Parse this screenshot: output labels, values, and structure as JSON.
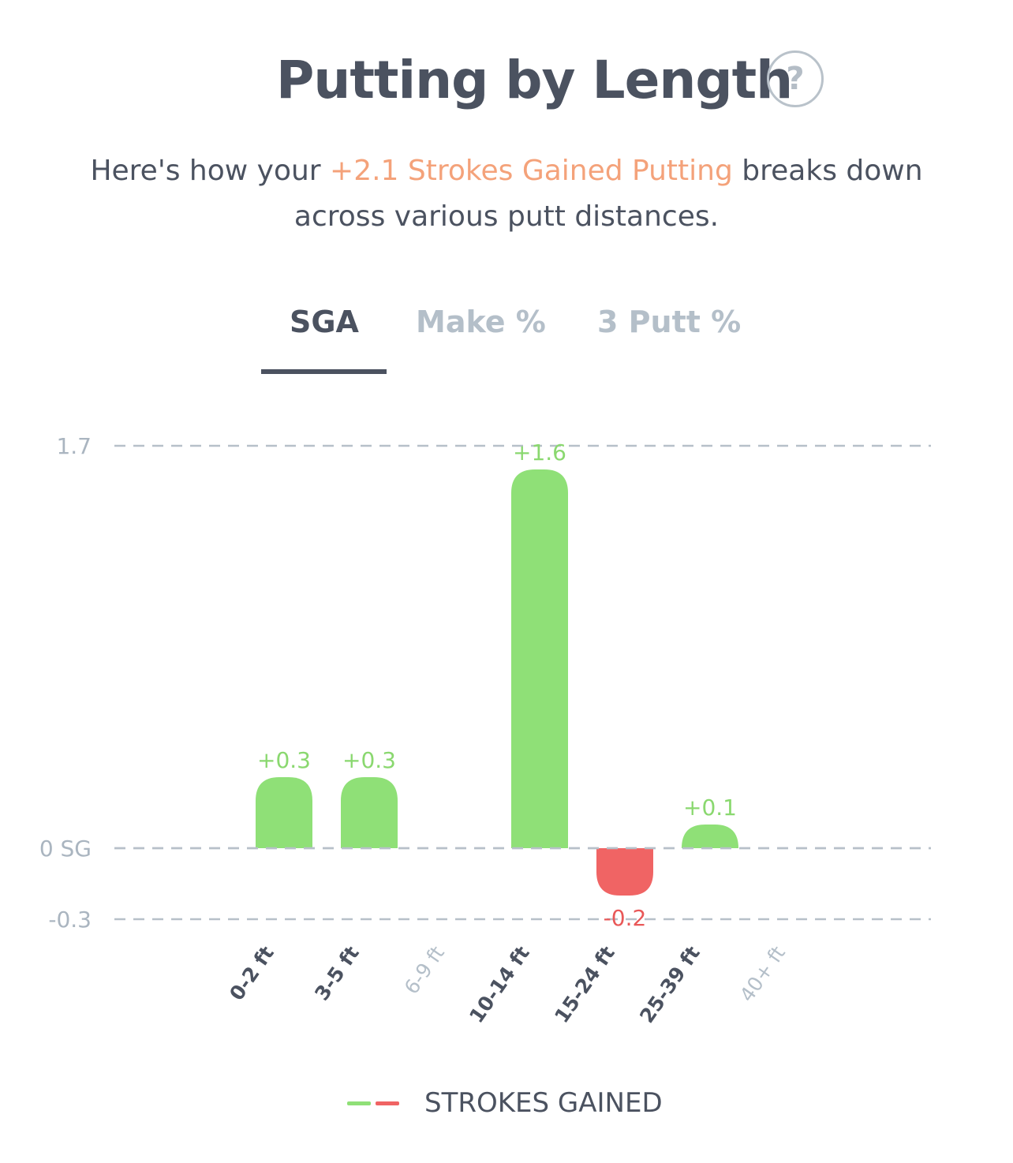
{
  "header": {
    "title": "Putting by Length",
    "help_label": "?",
    "subtitle_prefix": "Here's how your ",
    "subtitle_highlight": "+2.1 Strokes Gained Putting",
    "subtitle_suffix": " breaks down across various putt distances."
  },
  "tabs": [
    {
      "label": "SGA",
      "active": true
    },
    {
      "label": "Make %",
      "active": false
    },
    {
      "label": "3 Putt %",
      "active": false
    }
  ],
  "colors": {
    "positive": "#8fe077",
    "negative": "#f06464",
    "positive_label": "#8ad86f",
    "negative_label": "#e95858",
    "grid": "#b7c0c9",
    "axis_text": "#aab5c0",
    "category_active": "#4b5260",
    "category_inactive": "#b4bfc9",
    "highlight": "#f4a27a"
  },
  "chart_data": {
    "type": "bar",
    "categories": [
      "0-2 ft",
      "3-5 ft",
      "6-9 ft",
      "10-14 ft",
      "15-24 ft",
      "25-39 ft",
      "40+ ft"
    ],
    "category_active": [
      true,
      true,
      false,
      true,
      true,
      true,
      false
    ],
    "series": [
      {
        "name": "STROKES GAINED",
        "values": [
          0.3,
          0.3,
          null,
          1.6,
          -0.2,
          0.1,
          null
        ],
        "labels": [
          "+0.3",
          "+0.3",
          "",
          "+1.6",
          "-0.2",
          "+0.1",
          ""
        ]
      }
    ],
    "ylim": [
      -0.3,
      1.7
    ],
    "yticks": [
      {
        "value": 1.7,
        "label": "1.7"
      },
      {
        "value": 0,
        "label": "0 SG"
      },
      {
        "value": -0.3,
        "label": "-0.3"
      }
    ],
    "grid": "dashed",
    "legend": {
      "position": "bottom-center",
      "label": "STROKES GAINED"
    }
  }
}
